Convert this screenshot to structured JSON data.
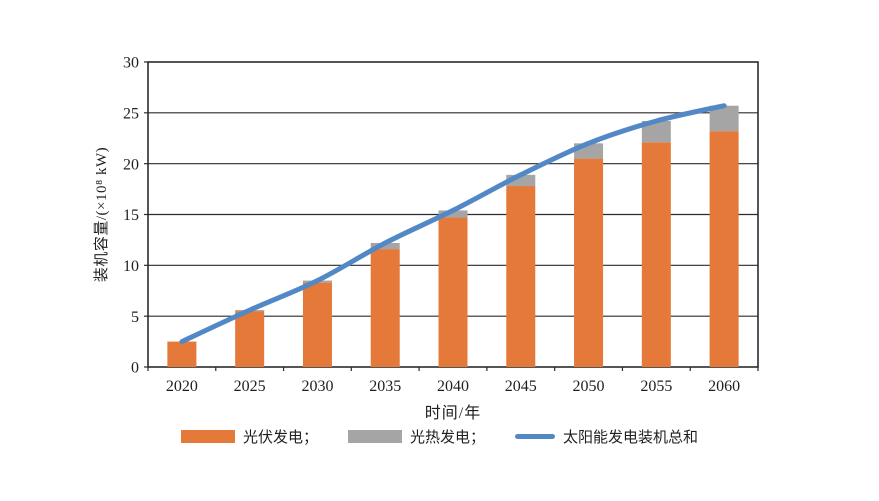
{
  "chart_data": {
    "type": "bar",
    "stacked": true,
    "overlay": "line",
    "categories": [
      "2020",
      "2025",
      "2030",
      "2035",
      "2040",
      "2045",
      "2050",
      "2055",
      "2060"
    ],
    "series": [
      {
        "name": "光伏发电",
        "kind": "bar",
        "color": "#E4793A",
        "values": [
          2.5,
          5.5,
          8.3,
          11.6,
          14.7,
          17.8,
          20.5,
          22.1,
          23.2
        ]
      },
      {
        "name": "光热发电",
        "kind": "bar",
        "color": "#A5A5A5",
        "values": [
          0,
          0.1,
          0.2,
          0.6,
          0.7,
          1.1,
          1.5,
          2.1,
          2.5
        ]
      },
      {
        "name": "太阳能发电装机总和",
        "kind": "line",
        "color": "#5288C5",
        "values": [
          2.5,
          5.6,
          8.5,
          12.2,
          15.4,
          18.9,
          22.0,
          24.2,
          25.7
        ]
      }
    ],
    "xlabel": "时间/年",
    "ylabel": "装机容量/(×10⁸ kW)",
    "ylim": [
      0,
      30
    ],
    "yticks": [
      0,
      5,
      10,
      15,
      20,
      25,
      30
    ],
    "grid": "horizontal",
    "legend_position": "bottom",
    "axis_color": "#2b2b2b",
    "text_color": "#1f1f1f"
  },
  "legend": {
    "items": [
      {
        "label": "光伏发电；",
        "swatch": "rect",
        "color": "#E4793A"
      },
      {
        "label": "光热发电；",
        "swatch": "rect",
        "color": "#A5A5A5"
      },
      {
        "label": "太阳能发电装机总和",
        "swatch": "line",
        "color": "#5288C5"
      }
    ]
  }
}
